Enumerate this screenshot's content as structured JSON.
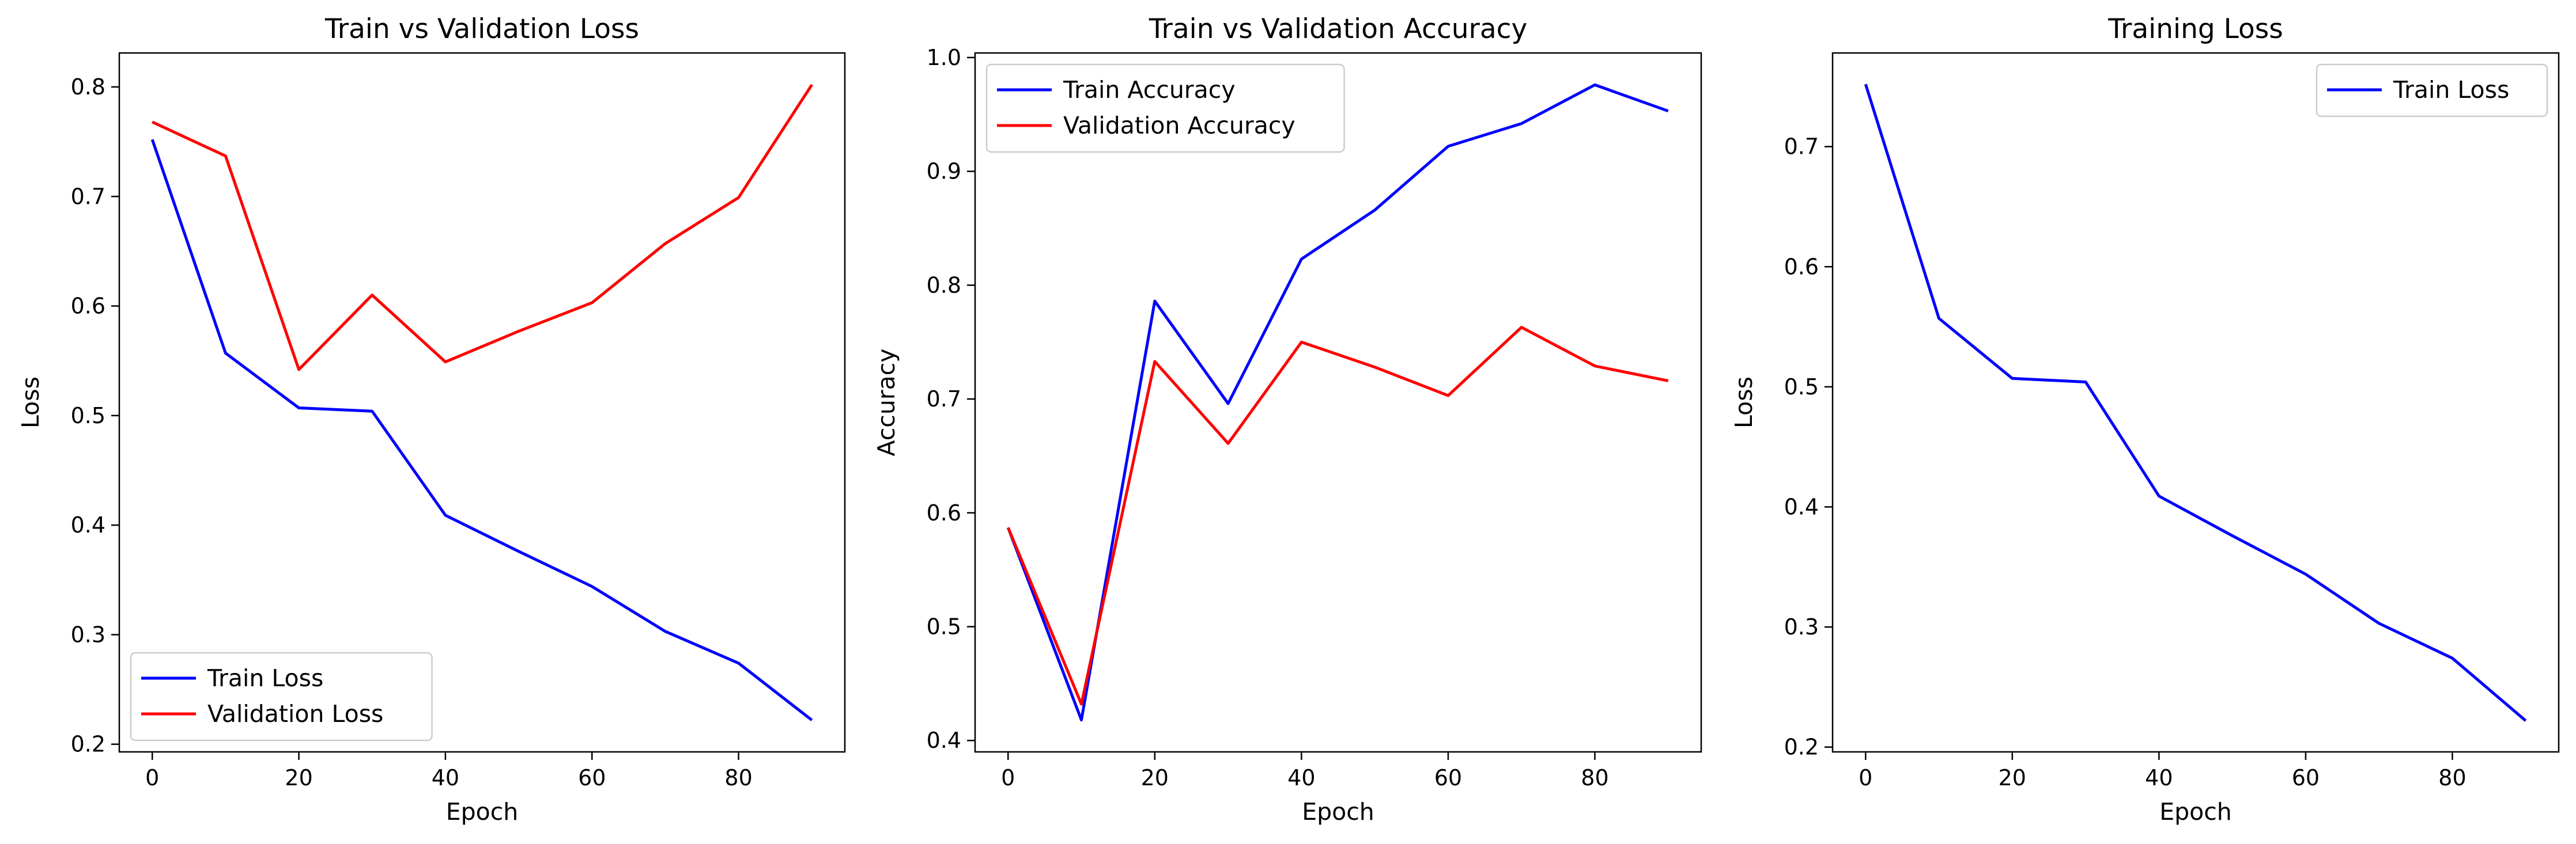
{
  "colors": {
    "blue": "#0000ff",
    "red": "#ff0000",
    "axes": "#000000",
    "legend_border": "#cccccc"
  },
  "chart_data": [
    {
      "type": "line",
      "title": "Train vs Validation Loss",
      "xlabel": "Epoch",
      "ylabel": "Loss",
      "xlim": [
        -4.5,
        94.5
      ],
      "ylim": [
        0.193,
        0.831
      ],
      "xticks": [
        0,
        20,
        40,
        60,
        80
      ],
      "xtick_labels": [
        "0",
        "20",
        "40",
        "60",
        "80"
      ],
      "yticks": [
        0.2,
        0.3,
        0.4,
        0.5,
        0.6,
        0.7,
        0.8
      ],
      "ytick_labels": [
        "0.2",
        "0.3",
        "0.4",
        "0.5",
        "0.6",
        "0.7",
        "0.8"
      ],
      "grid": false,
      "legend_position": "lower-left",
      "x": [
        0,
        10,
        20,
        30,
        40,
        50,
        60,
        70,
        80,
        90
      ],
      "series": [
        {
          "name": "Train Loss",
          "color": "#0000ff",
          "values": [
            0.752,
            0.557,
            0.507,
            0.504,
            0.409,
            0.376,
            0.344,
            0.303,
            0.274,
            0.222
          ]
        },
        {
          "name": "Validation Loss",
          "color": "#ff0000",
          "values": [
            0.768,
            0.737,
            0.542,
            0.61,
            0.549,
            0.577,
            0.603,
            0.657,
            0.699,
            0.802
          ]
        }
      ]
    },
    {
      "type": "line",
      "title": "Train vs Validation Accuracy",
      "xlabel": "Epoch",
      "ylabel": "Accuracy",
      "xlim": [
        -4.5,
        94.5
      ],
      "ylim": [
        0.39,
        1.004
      ],
      "xticks": [
        0,
        20,
        40,
        60,
        80
      ],
      "xtick_labels": [
        "0",
        "20",
        "40",
        "60",
        "80"
      ],
      "yticks": [
        0.4,
        0.5,
        0.6,
        0.7,
        0.8,
        0.9,
        1.0
      ],
      "ytick_labels": [
        "0.4",
        "0.5",
        "0.6",
        "0.7",
        "0.8",
        "0.9",
        "1.0"
      ],
      "grid": false,
      "legend_position": "upper-left",
      "x": [
        0,
        10,
        20,
        30,
        40,
        50,
        60,
        70,
        80,
        90
      ],
      "series": [
        {
          "name": "Train Accuracy",
          "color": "#0000ff",
          "values": [
            0.587,
            0.418,
            0.786,
            0.696,
            0.823,
            0.866,
            0.922,
            0.942,
            0.976,
            0.953
          ]
        },
        {
          "name": "Validation Accuracy",
          "color": "#ff0000",
          "values": [
            0.587,
            0.432,
            0.733,
            0.661,
            0.75,
            0.728,
            0.703,
            0.763,
            0.729,
            0.716
          ]
        }
      ]
    },
    {
      "type": "line",
      "title": "Training Loss",
      "xlabel": "Epoch",
      "ylabel": "Loss",
      "xlim": [
        -4.5,
        94.5
      ],
      "ylim": [
        0.196,
        0.778
      ],
      "xticks": [
        0,
        20,
        40,
        60,
        80
      ],
      "xtick_labels": [
        "0",
        "20",
        "40",
        "60",
        "80"
      ],
      "yticks": [
        0.2,
        0.3,
        0.4,
        0.5,
        0.6,
        0.7
      ],
      "ytick_labels": [
        "0.2",
        "0.3",
        "0.4",
        "0.5",
        "0.6",
        "0.7"
      ],
      "grid": false,
      "legend_position": "upper-right",
      "x": [
        0,
        10,
        20,
        30,
        40,
        50,
        60,
        70,
        80,
        90
      ],
      "series": [
        {
          "name": "Train Loss",
          "color": "#0000ff",
          "values": [
            0.752,
            0.557,
            0.507,
            0.504,
            0.409,
            0.376,
            0.344,
            0.303,
            0.274,
            0.222
          ]
        }
      ]
    }
  ]
}
